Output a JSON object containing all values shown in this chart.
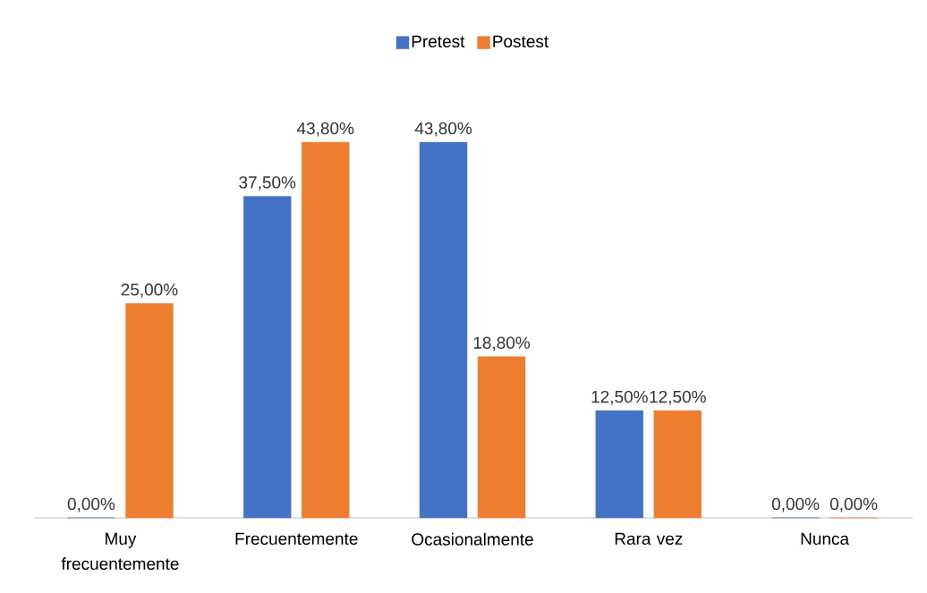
{
  "chart_data": {
    "type": "bar",
    "categories": [
      "Muy frecuentemente",
      "Frecuentemente",
      "Ocasionalmente",
      "Rara vez",
      "Nunca"
    ],
    "series": [
      {
        "name": "Pretest",
        "color": "#4472c4",
        "values": [
          0,
          37.5,
          43.8,
          12.5,
          0
        ],
        "value_labels": [
          "0,00%",
          "37,50%",
          "43,80%",
          "12,50%",
          "0,00%"
        ]
      },
      {
        "name": "Postest",
        "color": "#ed7d31",
        "values": [
          25,
          43.8,
          18.8,
          12.5,
          0
        ],
        "value_labels": [
          "25,00%",
          "43,80%",
          "18,80%",
          "12,50%",
          "0,00%"
        ]
      }
    ],
    "legend": "top"
  }
}
